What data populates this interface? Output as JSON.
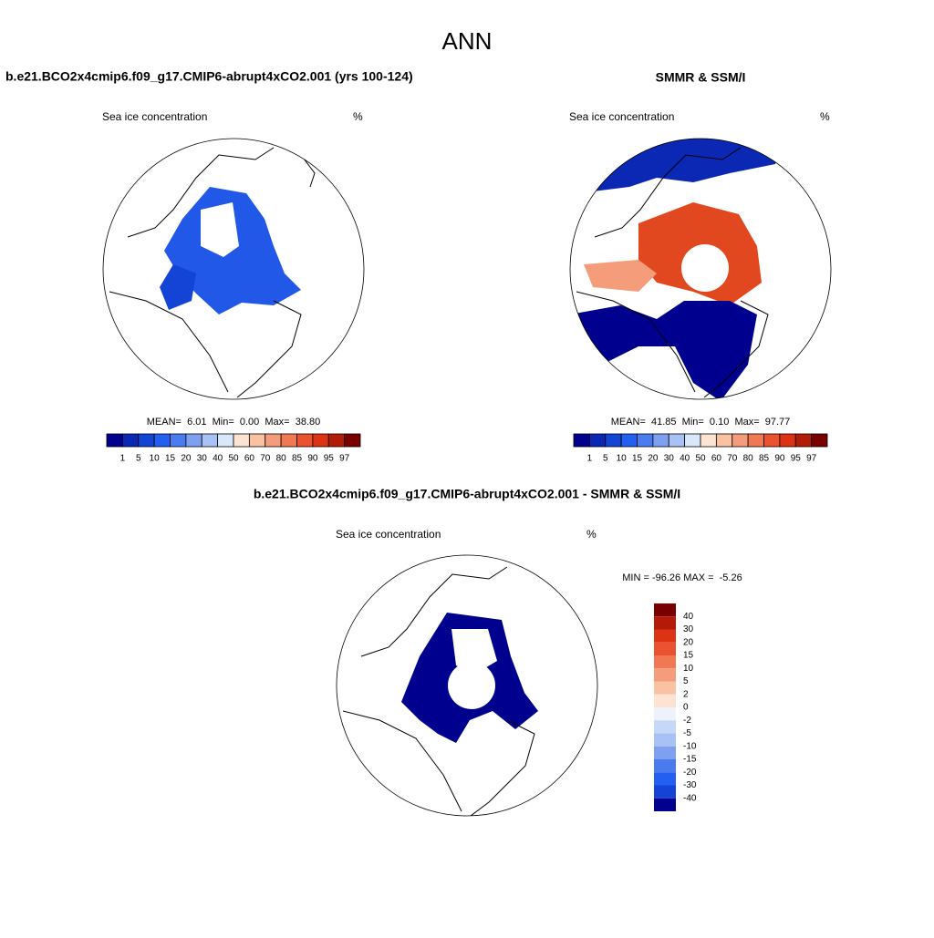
{
  "title": "ANN",
  "panels": [
    {
      "title": "b.e21.BCO2x4cmip6.f09_g17.CMIP6-abrupt4xCO2.001 (yrs 100-124)",
      "left_label": "Sea ice concentration",
      "right_label": "%",
      "stats": "MEAN=  6.01  Min=  0.00  Max=  38.80"
    },
    {
      "title": "SMMR & SSM/I",
      "left_label": "Sea ice concentration",
      "right_label": "%",
      "stats": "MEAN=  41.85  Min=  0.10  Max=  97.77"
    },
    {
      "title": "b.e21.BCO2x4cmip6.f09_g17.CMIP6-abrupt4xCO2.001 - SMMR & SSM/I",
      "left_label": "Sea ice concentration",
      "right_label": "%",
      "stats": "MIN = -96.26 MAX =  -5.26"
    }
  ],
  "colorbar": {
    "labels": [
      1,
      5,
      10,
      15,
      20,
      30,
      40,
      50,
      60,
      70,
      80,
      85,
      90,
      95,
      97
    ],
    "colors": [
      "#00008f",
      "#0a28b4",
      "#1344d6",
      "#235ff0",
      "#4a7cf0",
      "#7fa0f0",
      "#a9c2f6",
      "#d9e7fb",
      "#fde4d2",
      "#f9c2a2",
      "#f59c7a",
      "#f07852",
      "#ea5230",
      "#dd3214",
      "#b41a08",
      "#780000"
    ]
  },
  "diff_colorbar": {
    "labels": [
      40,
      30,
      20,
      15,
      10,
      5,
      2,
      0,
      -2,
      -5,
      -10,
      -15,
      -20,
      -30,
      -40
    ],
    "colors": [
      "#780000",
      "#b41a08",
      "#dd3214",
      "#ea5230",
      "#f07852",
      "#f59c7a",
      "#f9c2a2",
      "#fde4d2",
      "#eef3fb",
      "#c6d8f8",
      "#a9c2f6",
      "#7fa0f0",
      "#4a7cf0",
      "#235ff0",
      "#1344d6",
      "#00008f"
    ]
  }
}
